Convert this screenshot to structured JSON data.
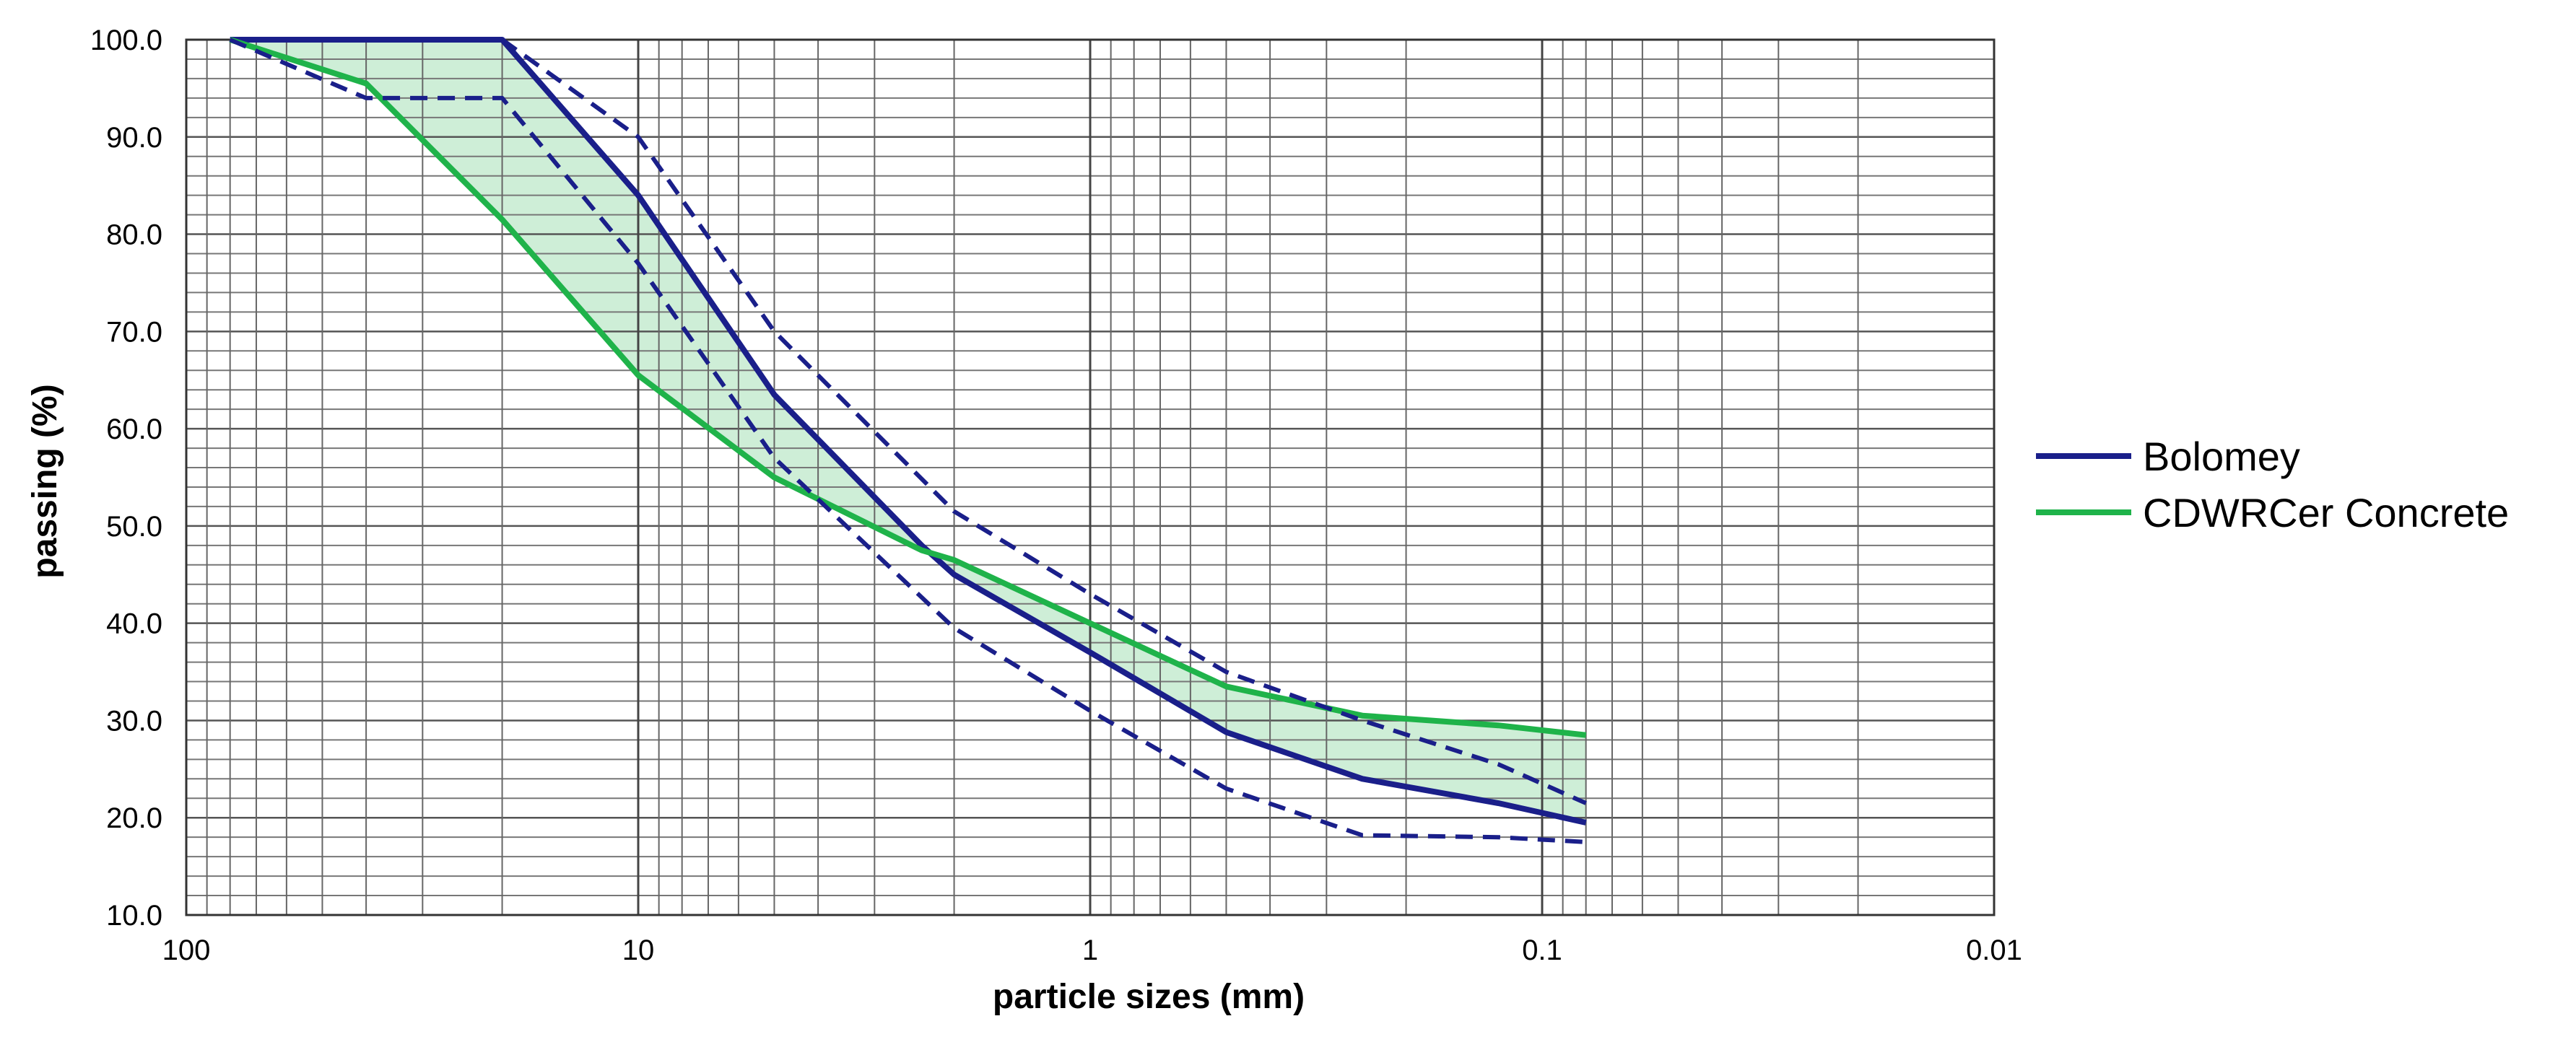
{
  "chart_data": {
    "type": "line",
    "xlabel": "particle sizes (mm)",
    "ylabel": "passing (%)",
    "x_scale": "log",
    "x_reversed": true,
    "xlim": [
      100,
      0.01
    ],
    "ylim": [
      10,
      100
    ],
    "x_tick_labels": [
      "100",
      "10",
      "1",
      "0.1",
      "0.01"
    ],
    "y_tick_labels": [
      "10.0",
      "20.0",
      "30.0",
      "40.0",
      "50.0",
      "60.0",
      "70.0",
      "80.0",
      "90.0",
      "100.0"
    ],
    "grid": true,
    "legend_position": "right",
    "series": [
      {
        "name": "Bolomey",
        "color": "#1a1f8a",
        "style": "solid",
        "x": [
          80,
          20,
          10,
          5,
          2.36,
          2,
          1,
          0.5,
          0.25,
          0.125,
          0.08
        ],
        "y": [
          100,
          100,
          84,
          63.5,
          48,
          45,
          37,
          28.8,
          24,
          21.5,
          19.5
        ]
      },
      {
        "name": "CDWRCer Concrete",
        "color": "#1fb34a",
        "style": "solid",
        "x": [
          80,
          40,
          20,
          10,
          5,
          2.36,
          2,
          1,
          0.5,
          0.25,
          0.125,
          0.08
        ],
        "y": [
          100,
          95.5,
          81.5,
          65.5,
          55,
          47.5,
          46.5,
          40,
          33.5,
          30.5,
          29.5,
          28.5
        ]
      },
      {
        "color": "#1a1f8a",
        "style": "dashed",
        "x": [
          80,
          40,
          20,
          10,
          5,
          2,
          1,
          0.5,
          0.25,
          0.125,
          0.08
        ],
        "y": [
          100,
          94,
          94,
          77,
          57,
          39.5,
          31,
          23,
          18.2,
          18,
          17.5
        ]
      },
      {
        "color": "#1a1f8a",
        "style": "dashed",
        "x": [
          20,
          10,
          5,
          2,
          1,
          0.5,
          0.25,
          0.125,
          0.08
        ],
        "y": [
          100,
          90,
          70,
          51.5,
          43,
          35,
          30,
          25.5,
          21.5
        ]
      }
    ],
    "shaded_band": {
      "color": "#1fb34a",
      "between": [
        "Bolomey",
        "CDWRCer Concrete"
      ]
    }
  }
}
